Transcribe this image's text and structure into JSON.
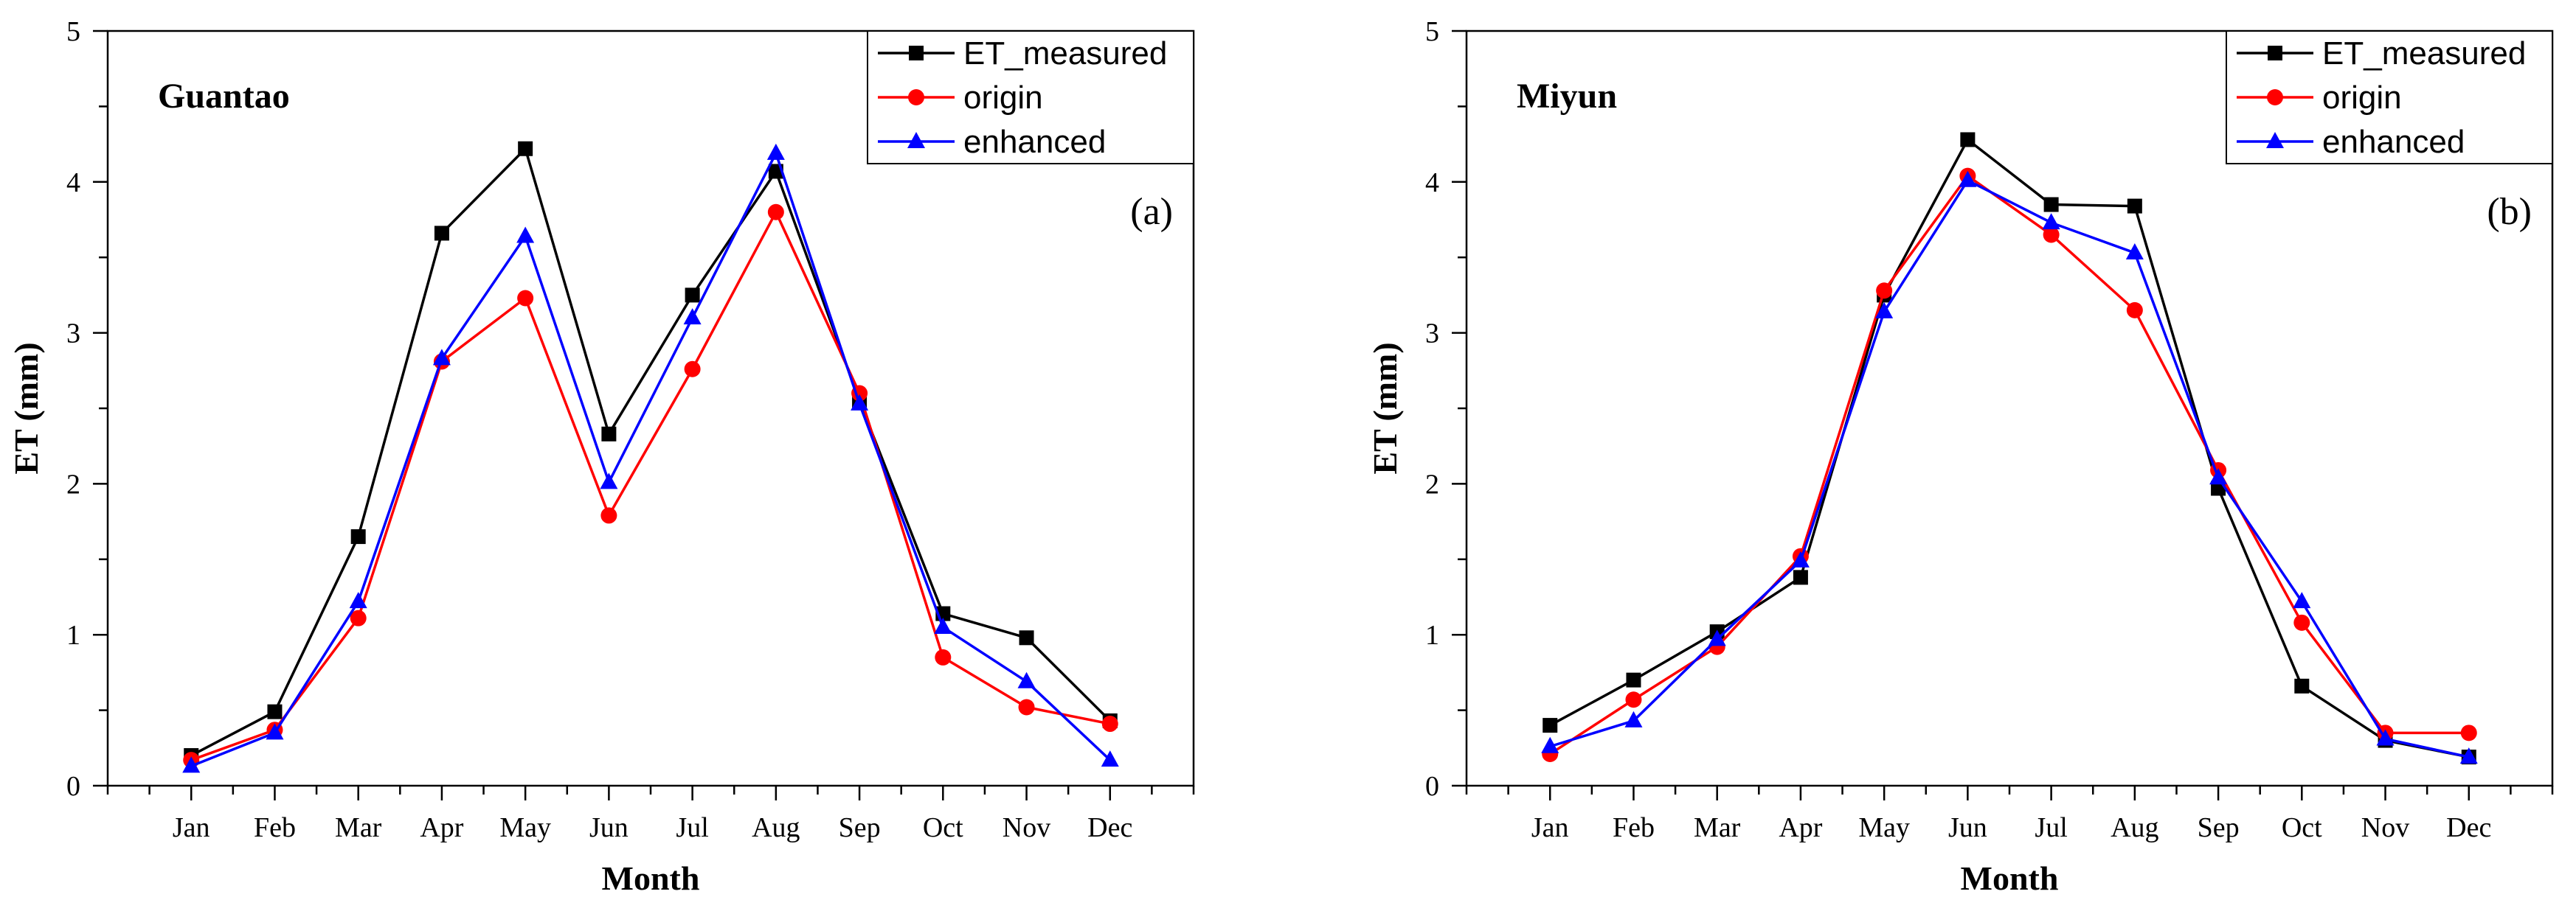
{
  "chart_data": [
    {
      "type": "line",
      "title": "Guantao",
      "panel_label": "(a)",
      "xlabel": "Month",
      "ylabel": "ET (mm)",
      "ylim": [
        0,
        5
      ],
      "yticks": [
        0,
        1,
        2,
        3,
        4,
        5
      ],
      "grid": false,
      "legend_position": "top-right",
      "categories": [
        "Jan",
        "Feb",
        "Mar",
        "Apr",
        "May",
        "Jun",
        "Jul",
        "Aug",
        "Sep",
        "Oct",
        "Nov",
        "Dec"
      ],
      "series": [
        {
          "name": "ET_measured",
          "color": "#000000",
          "marker": "square",
          "values": [
            0.2,
            0.49,
            1.65,
            3.66,
            4.22,
            2.33,
            3.25,
            4.07,
            2.55,
            1.14,
            0.98,
            0.43
          ]
        },
        {
          "name": "origin",
          "color": "#ff0000",
          "marker": "circle",
          "values": [
            0.17,
            0.37,
            1.11,
            2.81,
            3.23,
            1.79,
            2.76,
            3.8,
            2.6,
            0.85,
            0.52,
            0.41
          ]
        },
        {
          "name": "enhanced",
          "color": "#0000ff",
          "marker": "triangle",
          "values": [
            0.13,
            0.35,
            1.22,
            2.83,
            3.64,
            2.01,
            3.1,
            4.19,
            2.53,
            1.05,
            0.69,
            0.17
          ]
        }
      ]
    },
    {
      "type": "line",
      "title": "Miyun",
      "panel_label": "(b)",
      "xlabel": "Month",
      "ylabel": "ET (mm)",
      "ylim": [
        0,
        5
      ],
      "yticks": [
        0,
        1,
        2,
        3,
        4,
        5
      ],
      "grid": false,
      "legend_position": "top-right",
      "categories": [
        "Jan",
        "Feb",
        "Mar",
        "Apr",
        "May",
        "Jun",
        "Jul",
        "Aug",
        "Sep",
        "Oct",
        "Nov",
        "Dec"
      ],
      "series": [
        {
          "name": "ET_measured",
          "color": "#000000",
          "marker": "square",
          "values": [
            0.4,
            0.7,
            1.02,
            1.38,
            3.25,
            4.28,
            3.85,
            3.84,
            1.97,
            0.66,
            0.3,
            0.19
          ]
        },
        {
          "name": "origin",
          "color": "#ff0000",
          "marker": "circle",
          "values": [
            0.21,
            0.57,
            0.92,
            1.52,
            3.28,
            4.04,
            3.65,
            3.15,
            2.09,
            1.08,
            0.35,
            0.35
          ]
        },
        {
          "name": "enhanced",
          "color": "#0000ff",
          "marker": "triangle",
          "values": [
            0.26,
            0.43,
            0.97,
            1.49,
            3.14,
            4.01,
            3.73,
            3.53,
            2.04,
            1.22,
            0.31,
            0.19
          ]
        }
      ]
    }
  ]
}
